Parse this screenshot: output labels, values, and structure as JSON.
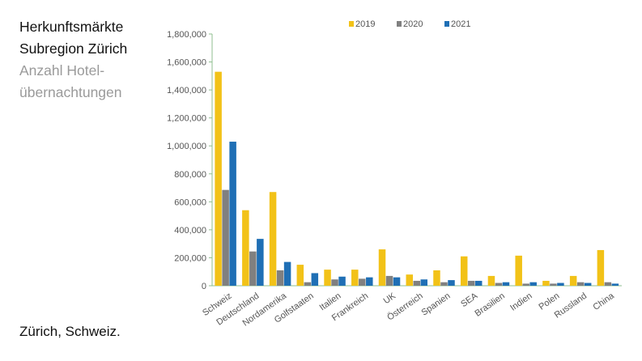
{
  "heading": {
    "line1": "Herkunftsmärkte",
    "line2": "Subregion Zürich",
    "line3": "Anzahl Hotel-",
    "line4": "übernachtungen"
  },
  "footer": {
    "location": "Zürich, Schweiz."
  },
  "colors": {
    "s2019": "#f2c218",
    "s2020": "#808080",
    "s2021": "#1f6fb5",
    "axis": "#8fbf8f",
    "text": "#555555"
  },
  "chart_data": {
    "type": "bar",
    "title": "",
    "xlabel": "",
    "ylabel": "",
    "ylim": [
      0,
      1800000
    ],
    "yticks": [
      0,
      200000,
      400000,
      600000,
      800000,
      1000000,
      1200000,
      1400000,
      1600000,
      1800000
    ],
    "ytick_labels": [
      "0",
      "200,000",
      "400,000",
      "600,000",
      "800,000",
      "1,000,000",
      "1,200,000",
      "1,400,000",
      "1,600,000",
      "1,800,000"
    ],
    "categories": [
      "Schweiz",
      "Deutschland",
      "Nordamerika",
      "Golfstaaten",
      "Italien",
      "Frankreich",
      "UK",
      "Österreich",
      "Spanien",
      "SEA",
      "Brasilien",
      "Indien",
      "Polen",
      "Russland",
      "China"
    ],
    "legend_position": "top",
    "series": [
      {
        "name": "2019",
        "values": [
          1530000,
          540000,
          670000,
          150000,
          115000,
          115000,
          260000,
          80000,
          110000,
          210000,
          70000,
          215000,
          35000,
          70000,
          255000
        ]
      },
      {
        "name": "2020",
        "values": [
          685000,
          245000,
          110000,
          25000,
          45000,
          50000,
          70000,
          35000,
          25000,
          35000,
          20000,
          15000,
          15000,
          25000,
          25000
        ]
      },
      {
        "name": "2021",
        "values": [
          1030000,
          335000,
          170000,
          90000,
          65000,
          60000,
          60000,
          45000,
          40000,
          35000,
          25000,
          25000,
          20000,
          20000,
          15000
        ]
      }
    ]
  }
}
